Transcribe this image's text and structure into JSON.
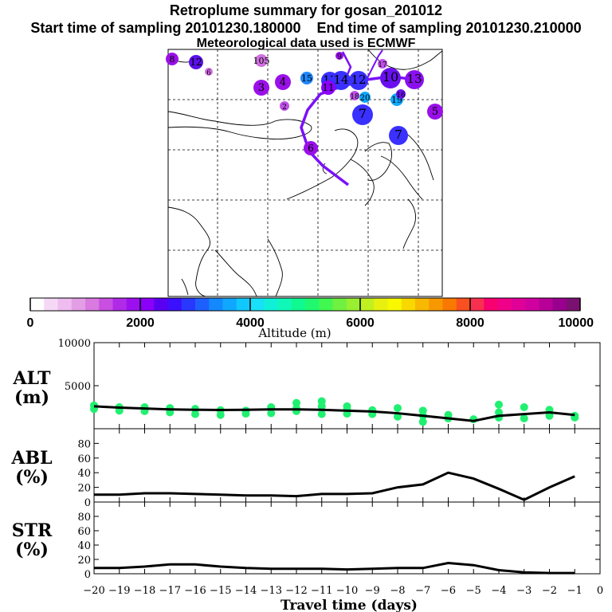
{
  "header": {
    "title": "Retroplume summary for gosan_201012",
    "start_label": "Start time of sampling 20101230.180000",
    "end_label": "End time of sampling 20101230.210000",
    "met_label": "Meteorological data used is ECMWF"
  },
  "colorbar": {
    "label": "Altitude (m)",
    "ticks": [
      0,
      2000,
      4000,
      6000,
      8000,
      10000
    ],
    "colors": [
      "#ffffff",
      "#f5d8f5",
      "#eebcee",
      "#e39ee6",
      "#d97ae0",
      "#c84fe0",
      "#b02ae8",
      "#9c10f0",
      "#8a00f8",
      "#5a00f0",
      "#3a10ff",
      "#2838ff",
      "#1e60ff",
      "#1488ff",
      "#10a8ff",
      "#10c8ff",
      "#18e0f8",
      "#10f0d8",
      "#10f8b8",
      "#10f890",
      "#20f870",
      "#40f850",
      "#70f040",
      "#98f030",
      "#c0f020",
      "#e8f010",
      "#f8f800",
      "#f8d800",
      "#f8b800",
      "#f89800",
      "#f87800",
      "#f85020",
      "#f83050",
      "#f80070",
      "#f00088",
      "#e00098",
      "#d000a0",
      "#b80098",
      "#9a0090",
      "#7a1070"
    ]
  },
  "map": {
    "markers": [
      {
        "label": "8",
        "color": "#9a10e8"
      },
      {
        "label": "12",
        "color": "#5a10e8"
      },
      {
        "label": "6",
        "color": "#d070e0"
      },
      {
        "label": "105",
        "color": "#d070e0"
      },
      {
        "label": "9",
        "color": "#9a10e8"
      },
      {
        "label": "17",
        "color": "#c050e8"
      },
      {
        "label": "3",
        "color": "#9a10e8"
      },
      {
        "label": "4",
        "color": "#9a10e8"
      },
      {
        "label": "15",
        "color": "#1e88ff"
      },
      {
        "label": "13",
        "color": "#3a30ff"
      },
      {
        "label": "14",
        "color": "#3a30ff"
      },
      {
        "label": "12",
        "color": "#3a30ff"
      },
      {
        "label": "10",
        "color": "#6a10f0"
      },
      {
        "label": "13",
        "color": "#8a10f0"
      },
      {
        "label": "5",
        "color": "#9a10e8"
      },
      {
        "label": "2",
        "color": "#c050e8"
      },
      {
        "label": "7",
        "color": "#3a30ff"
      },
      {
        "label": "20",
        "color": "#10a8ff"
      },
      {
        "label": "19",
        "color": "#10a8ff"
      },
      {
        "label": "16",
        "color": "#6a10f0"
      },
      {
        "label": "7",
        "color": "#3a30ff"
      },
      {
        "label": "6",
        "color": "#9a10e8"
      },
      {
        "label": "11",
        "color": "#8a00f8"
      },
      {
        "label": "18",
        "color": "#c050e8"
      }
    ]
  },
  "chart_data": [
    {
      "type": "scatter",
      "name": "ALT",
      "ylabel": "ALT (m)",
      "ylim": [
        0,
        10000
      ],
      "yticks": [
        5000,
        10000
      ],
      "x": [
        -20,
        -19,
        -18,
        -17,
        -16,
        -15,
        -14,
        -13,
        -12,
        -11,
        -10,
        -9,
        -8,
        -7,
        -6,
        -5,
        -4,
        -3,
        -2,
        -1
      ],
      "line": [
        2600,
        2450,
        2350,
        2250,
        2200,
        2180,
        2200,
        2250,
        2250,
        2200,
        2100,
        2000,
        1800,
        1500,
        1200,
        900,
        1500,
        1700,
        1900,
        1600
      ],
      "points": [
        [
          -20,
          2700
        ],
        [
          -20,
          2300
        ],
        [
          -19,
          2500
        ],
        [
          -19,
          2100
        ],
        [
          -18,
          2500
        ],
        [
          -18,
          2050
        ],
        [
          -17,
          2400
        ],
        [
          -17,
          1900
        ],
        [
          -16,
          2300
        ],
        [
          -16,
          1700
        ],
        [
          -15,
          2150
        ],
        [
          -15,
          1600
        ],
        [
          -14,
          2100
        ],
        [
          -14,
          1750
        ],
        [
          -13,
          2500
        ],
        [
          -13,
          1800
        ],
        [
          -12,
          2350
        ],
        [
          -12,
          2050
        ],
        [
          -12,
          3000
        ],
        [
          -11,
          2600
        ],
        [
          -11,
          1700
        ],
        [
          -11,
          3200
        ],
        [
          -10,
          2200
        ],
        [
          -10,
          1750
        ],
        [
          -10,
          2600
        ],
        [
          -9,
          2150
        ],
        [
          -9,
          1700
        ],
        [
          -8,
          2400
        ],
        [
          -8,
          1400
        ],
        [
          -7,
          2100
        ],
        [
          -7,
          1500
        ],
        [
          -7,
          800
        ],
        [
          -6,
          1200
        ],
        [
          -6,
          1600
        ],
        [
          -5,
          1100
        ],
        [
          -4,
          1300
        ],
        [
          -4,
          1900
        ],
        [
          -4,
          2800
        ],
        [
          -3,
          1200
        ],
        [
          -3,
          2500
        ],
        [
          -2,
          1500
        ],
        [
          -2,
          2200
        ],
        [
          -1,
          1500
        ],
        [
          -1,
          1300
        ]
      ],
      "marker_color": "#20f070"
    },
    {
      "type": "line",
      "name": "ABL",
      "ylabel": "ABL (%)",
      "ylim": [
        0,
        100
      ],
      "yticks": [
        0,
        20,
        40,
        60,
        80
      ],
      "x": [
        -20,
        -19,
        -18,
        -17,
        -16,
        -15,
        -14,
        -13,
        -12,
        -11,
        -10,
        -9,
        -8,
        -7,
        -6,
        -5,
        -4,
        -3,
        -2,
        -1
      ],
      "values": [
        10,
        10,
        12,
        12,
        11,
        10,
        9,
        9,
        8,
        11,
        11,
        12,
        20,
        24,
        40,
        32,
        18,
        3,
        20,
        35
      ]
    },
    {
      "type": "line",
      "name": "STR",
      "ylabel": "STR (%)",
      "ylim": [
        0,
        100
      ],
      "yticks": [
        0,
        20,
        40,
        60,
        80
      ],
      "x": [
        -20,
        -19,
        -18,
        -17,
        -16,
        -15,
        -14,
        -13,
        -12,
        -11,
        -10,
        -9,
        -8,
        -7,
        -6,
        -5,
        -4,
        -3,
        -2,
        -1
      ],
      "values": [
        8,
        8,
        10,
        13,
        13,
        10,
        8,
        7,
        7,
        7,
        6,
        7,
        8,
        8,
        15,
        12,
        5,
        2,
        1,
        1
      ]
    }
  ],
  "panel_labels": {
    "alt": [
      "ALT",
      "(m)"
    ],
    "abl": [
      "ABL",
      "(%)"
    ],
    "str": [
      "STR",
      "(%)"
    ]
  },
  "xaxis": {
    "label": "Travel time (days)",
    "ticks": [
      -20,
      -19,
      -18,
      -17,
      -16,
      -15,
      -14,
      -13,
      -12,
      -11,
      -10,
      -9,
      -8,
      -7,
      -6,
      -5,
      -4,
      -3,
      -2,
      -1,
      0
    ]
  }
}
